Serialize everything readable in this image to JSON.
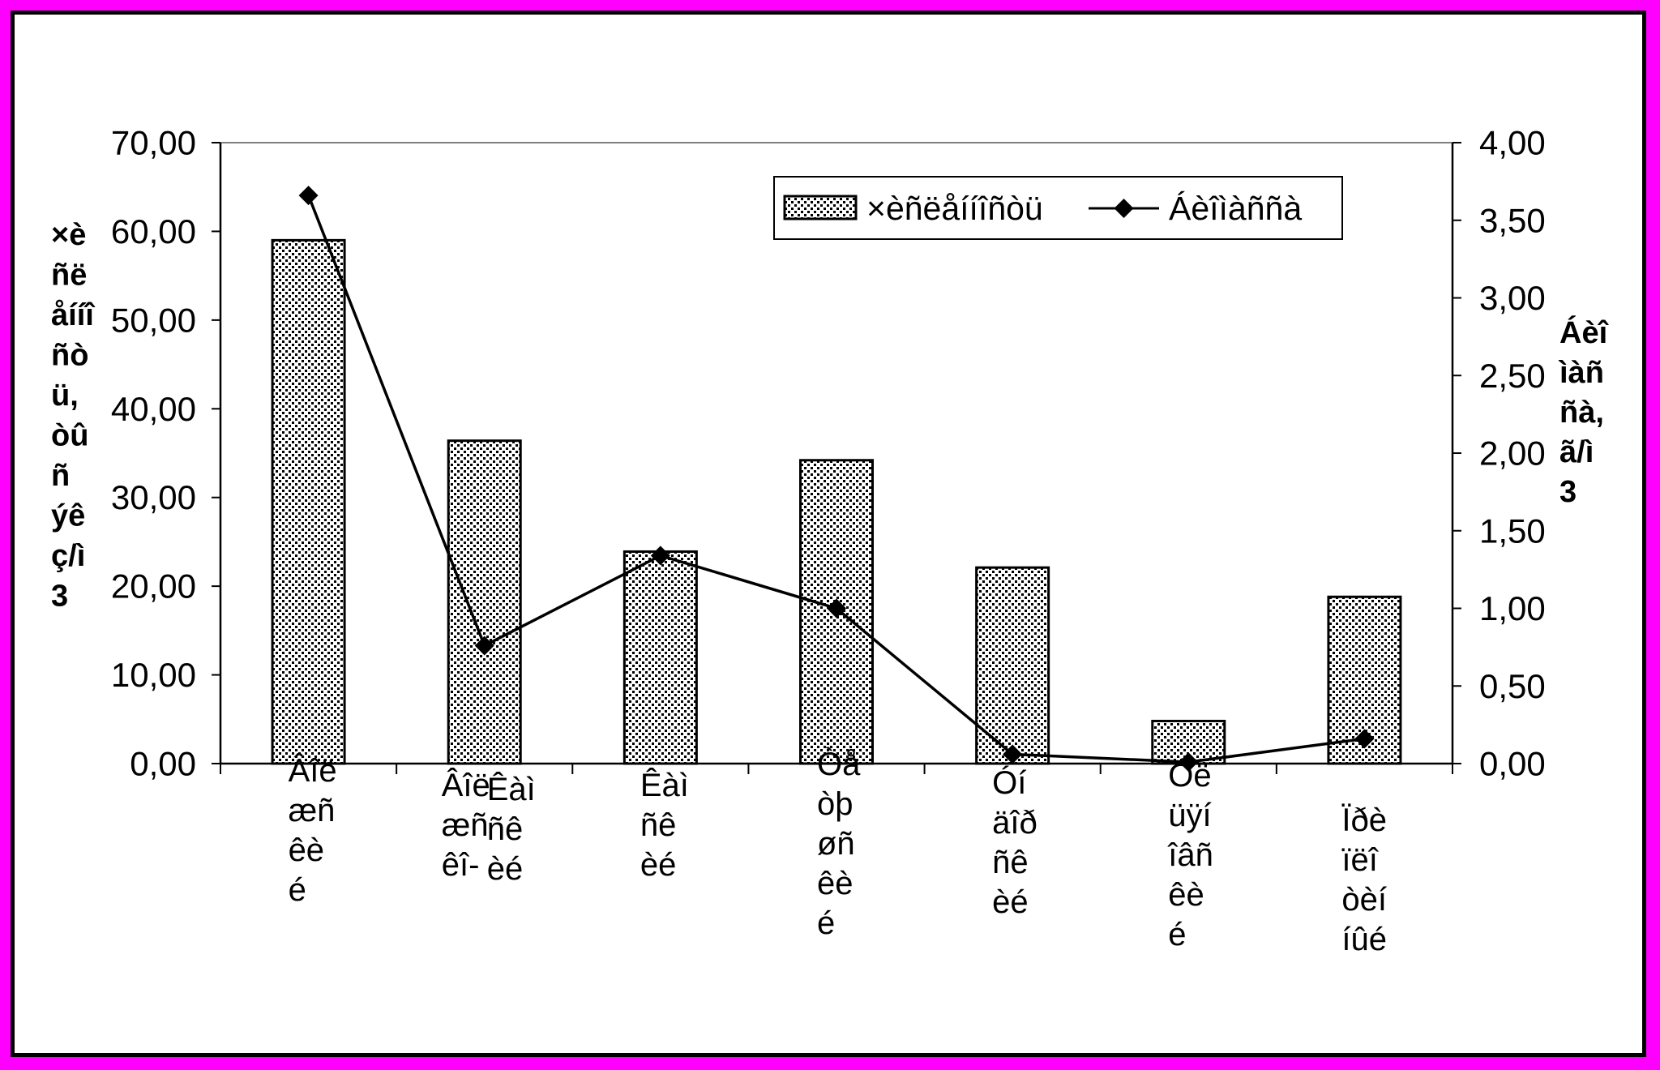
{
  "colors": {
    "frame": "#ff00ff",
    "panel": "#ffffff",
    "ink": "#000000",
    "plot_border": "#808080"
  },
  "chart_data": {
    "type": "bar",
    "categories": [
      [
        "Âîë",
        "æñ",
        "êè",
        "é"
      ],
      [
        "Âîë",
        "æñ",
        "êî-",
        "Êàì",
        "ñê",
        "èé"
      ],
      [
        "Êàì",
        "ñê",
        "èé"
      ],
      [
        "Òå",
        "òþ",
        "øñ",
        "êè",
        "é"
      ],
      [
        "Óí",
        "äîð",
        "ñê",
        "èé"
      ],
      [
        "Óë",
        "üÿí",
        "îâñ",
        "êè",
        "é"
      ],
      [
        "Ïðè",
        "ïëî",
        "òèí",
        "íûé"
      ]
    ],
    "series": [
      {
        "name": "×èñëåííîñòü",
        "type": "bar",
        "axis": "left",
        "values": [
          59.0,
          36.4,
          23.9,
          34.2,
          22.1,
          4.8,
          18.8
        ]
      },
      {
        "name": "Áèîìàññà",
        "type": "line",
        "axis": "right",
        "marker": "diamond",
        "values": [
          3.66,
          0.76,
          1.34,
          1.0,
          0.06,
          0.01,
          0.16
        ]
      }
    ],
    "ylabel": [
      "×è",
      "ñë",
      "åííî",
      "ñò",
      "ü,",
      "òû",
      "ñ",
      "ýê",
      "ç/ì",
      "3"
    ],
    "y2label": [
      "Áèî",
      "ìàñ",
      "ñà,",
      "ã/ì",
      "3"
    ],
    "ylim": [
      0,
      70
    ],
    "y2lim": [
      0,
      4
    ],
    "yticks": [
      0,
      10,
      20,
      30,
      40,
      50,
      60,
      70
    ],
    "ytick_labels": [
      "0,00",
      "10,00",
      "20,00",
      "30,00",
      "40,00",
      "50,00",
      "60,00",
      "70,00"
    ],
    "y2ticks": [
      0,
      0.5,
      1,
      1.5,
      2,
      2.5,
      3,
      3.5,
      4
    ],
    "y2tick_labels": [
      "0,00",
      "0,50",
      "1,00",
      "1,50",
      "2,00",
      "2,50",
      "3,00",
      "3,50",
      "4,00"
    ],
    "legend_position": "top-right",
    "grid": false
  }
}
